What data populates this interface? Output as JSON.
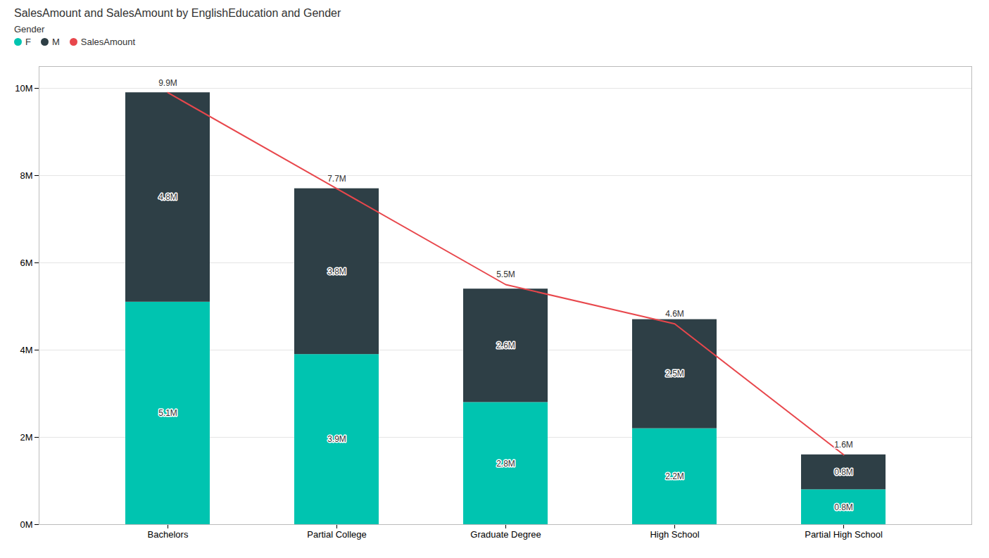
{
  "chart_data": {
    "type": "bar",
    "title": "SalesAmount and SalesAmount by EnglishEducation and Gender",
    "legend_title": "Gender",
    "categories": [
      "Bachelors",
      "Partial College",
      "Graduate Degree",
      "High School",
      "Partial High School"
    ],
    "series": [
      {
        "name": "F",
        "color": "#00C4B0",
        "values": [
          5.1,
          3.9,
          2.8,
          2.2,
          0.8
        ],
        "value_labels": [
          "5.1M",
          "3.9M",
          "2.8M",
          "2.2M",
          "0.8M"
        ]
      },
      {
        "name": "M",
        "color": "#2E3F46",
        "values": [
          4.8,
          3.8,
          2.6,
          2.5,
          0.8
        ],
        "value_labels": [
          "4.8M",
          "3.8M",
          "2.6M",
          "2.5M",
          "0.8M"
        ]
      },
      {
        "name": "SalesAmount",
        "type": "line",
        "color": "#E8474C",
        "values": [
          9.9,
          7.7,
          5.5,
          4.6,
          1.6
        ],
        "value_labels": [
          "9.9M",
          "7.7M",
          "5.5M",
          "4.6M",
          "1.6M"
        ]
      }
    ],
    "stacked": true,
    "data_labels": true,
    "ylim": [
      0,
      10.5
    ],
    "yticks": [
      {
        "value": 0,
        "label": "0M"
      },
      {
        "value": 2,
        "label": "2M"
      },
      {
        "value": 4,
        "label": "4M"
      },
      {
        "value": 6,
        "label": "6M"
      },
      {
        "value": 8,
        "label": "8M"
      },
      {
        "value": 10,
        "label": "10M"
      }
    ],
    "grid": true,
    "legend": "upper left"
  }
}
